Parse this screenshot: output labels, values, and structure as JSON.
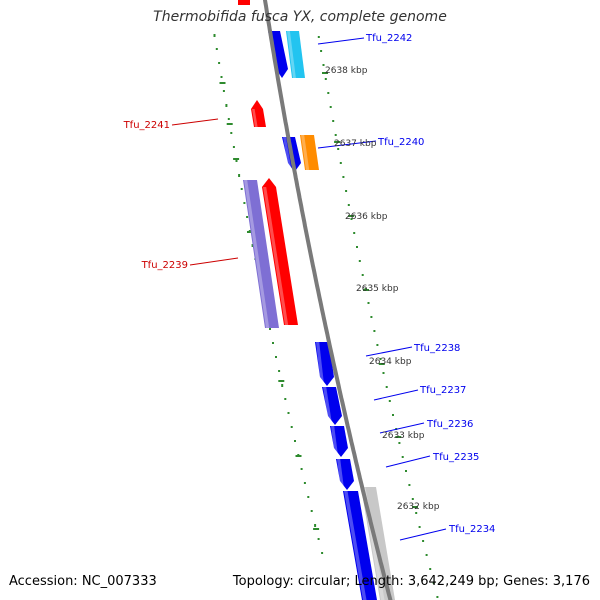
{
  "title": "Thermobifida fusca YX, complete genome",
  "accession": "Accession: NC_007333",
  "topology": "Topology: circular; Length: 3,642,249 bp; Genes: 3,176",
  "colors": {
    "backbone": "#7a7a7a",
    "plus_gene": "#0000ee",
    "minus_gene": "#ff0000",
    "minus_gene_label": "#cc0000",
    "purple_gene": "#7e6fd4",
    "cyan_gene": "#22c4f0",
    "orange_gene": "#ff8c00",
    "grey_gene": "#c8c8c8",
    "dots": "#2e8b2e"
  },
  "ticks": [
    {
      "label": "2638 kbp"
    },
    {
      "label": "2637 kbp"
    },
    {
      "label": "2636 kbp"
    },
    {
      "label": "2635 kbp"
    },
    {
      "label": "2634 kbp"
    },
    {
      "label": "2633 kbp"
    },
    {
      "label": "2632 kbp"
    }
  ],
  "genes": [
    {
      "name": "Tfu_2242",
      "strand": "+"
    },
    {
      "name": "Tfu_2241",
      "strand": "-"
    },
    {
      "name": "Tfu_2240",
      "strand": "+"
    },
    {
      "name": "Tfu_2239",
      "strand": "-"
    },
    {
      "name": "Tfu_2238",
      "strand": "+"
    },
    {
      "name": "Tfu_2237",
      "strand": "+"
    },
    {
      "name": "Tfu_2236",
      "strand": "+"
    },
    {
      "name": "Tfu_2235",
      "strand": "+"
    },
    {
      "name": "Tfu_2234",
      "strand": "+"
    }
  ]
}
